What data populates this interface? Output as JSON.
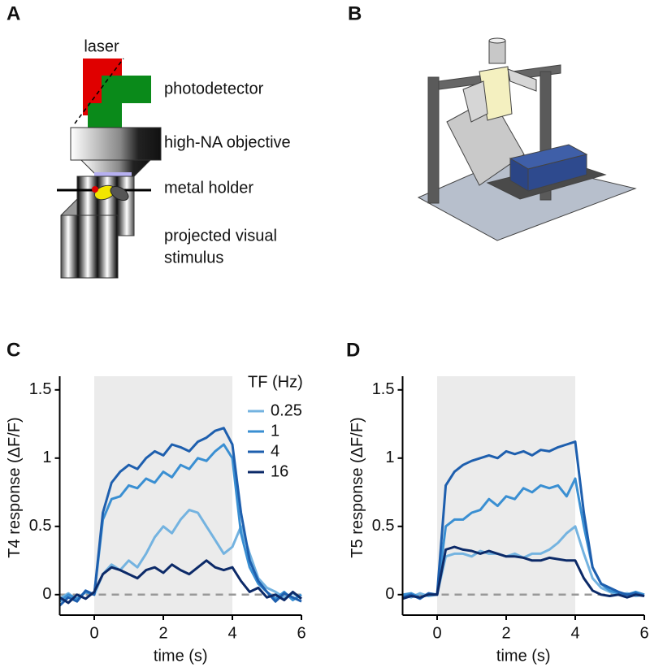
{
  "figure": {
    "panel_labels": [
      "A",
      "B",
      "C",
      "D"
    ],
    "diagram_labels": [
      "laser",
      "photodetector",
      "high-NA objective",
      "metal holder"
    ],
    "stimulus_label_lines": [
      "projected visual",
      "stimulus"
    ]
  },
  "chart_data": [
    {
      "type": "line",
      "xlabel": "time (s)",
      "ylabel": "T4 response (ΔF/F)",
      "xlim": [
        -1,
        6
      ],
      "ylim": [
        -0.15,
        1.6
      ],
      "xticks": [
        0,
        2,
        4,
        6
      ],
      "yticks": [
        0,
        0.5,
        1,
        1.5
      ],
      "stimulus": [
        0,
        4
      ],
      "shade_color": "#ebebeb",
      "reference_line": 0,
      "legend": "upper right",
      "legend_title": "TF (Hz)",
      "x": [
        -1,
        -0.75,
        -0.5,
        -0.25,
        0,
        0.25,
        0.5,
        0.75,
        1,
        1.25,
        1.5,
        1.75,
        2,
        2.25,
        2.5,
        2.75,
        3,
        3.25,
        3.5,
        3.75,
        4,
        4.25,
        4.5,
        4.75,
        5,
        5.25,
        5.5,
        5.75,
        6
      ],
      "series": [
        {
          "name": "0.25",
          "color": "#74b3e0",
          "values": [
            -0.03,
            0.01,
            -0.04,
            0.02,
            0.0,
            0.15,
            0.22,
            0.18,
            0.25,
            0.2,
            0.3,
            0.42,
            0.5,
            0.45,
            0.55,
            0.62,
            0.6,
            0.5,
            0.4,
            0.3,
            0.35,
            0.5,
            0.3,
            0.12,
            0.05,
            0.02,
            -0.02,
            0.01,
            -0.03
          ]
        },
        {
          "name": "1",
          "color": "#3a8fd2",
          "values": [
            -0.05,
            0.0,
            -0.03,
            0.02,
            0.0,
            0.55,
            0.7,
            0.72,
            0.8,
            0.78,
            0.85,
            0.82,
            0.9,
            0.86,
            0.95,
            0.92,
            1.0,
            0.98,
            1.05,
            1.1,
            1.0,
            0.45,
            0.2,
            0.08,
            0.02,
            -0.03,
            0.02,
            -0.04,
            0.0
          ]
        },
        {
          "name": "4",
          "color": "#1e5fae",
          "values": [
            -0.08,
            -0.02,
            -0.05,
            0.03,
            0.0,
            0.6,
            0.82,
            0.9,
            0.95,
            0.92,
            1.0,
            1.05,
            1.02,
            1.1,
            1.08,
            1.05,
            1.12,
            1.15,
            1.2,
            1.22,
            1.1,
            0.6,
            0.25,
            0.1,
            0.02,
            -0.05,
            0.01,
            -0.02,
            -0.05
          ]
        },
        {
          "name": "16",
          "color": "#0c2a68",
          "values": [
            -0.02,
            -0.06,
            0.0,
            -0.03,
            0.02,
            0.15,
            0.2,
            0.18,
            0.15,
            0.12,
            0.18,
            0.2,
            0.16,
            0.22,
            0.18,
            0.15,
            0.2,
            0.25,
            0.2,
            0.18,
            0.2,
            0.1,
            0.02,
            0.05,
            -0.02,
            0.0,
            -0.04,
            0.02,
            -0.03
          ]
        }
      ]
    },
    {
      "type": "line",
      "xlabel": "time (s)",
      "ylabel": "T5 response (ΔF/F)",
      "xlim": [
        -1,
        6
      ],
      "ylim": [
        -0.15,
        1.6
      ],
      "xticks": [
        0,
        2,
        4,
        6
      ],
      "yticks": [
        0,
        0.5,
        1,
        1.5
      ],
      "stimulus": [
        0,
        4
      ],
      "shade_color": "#ebebeb",
      "reference_line": 0,
      "x": [
        -1,
        -0.75,
        -0.5,
        -0.25,
        0,
        0.25,
        0.5,
        0.75,
        1,
        1.25,
        1.5,
        1.75,
        2,
        2.25,
        2.5,
        2.75,
        3,
        3.25,
        3.5,
        3.75,
        4,
        4.25,
        4.5,
        4.75,
        5,
        5.25,
        5.5,
        5.75,
        6
      ],
      "series": [
        {
          "color": "#74b3e0",
          "values": [
            0.0,
            -0.02,
            0.01,
            -0.01,
            0.0,
            0.28,
            0.3,
            0.3,
            0.28,
            0.32,
            0.3,
            0.3,
            0.28,
            0.3,
            0.27,
            0.3,
            0.3,
            0.33,
            0.38,
            0.45,
            0.5,
            0.3,
            0.12,
            0.05,
            0.02,
            0.0,
            0.01,
            -0.01,
            0.0
          ]
        },
        {
          "color": "#3a8fd2",
          "values": [
            0.0,
            0.01,
            -0.02,
            0.0,
            0.0,
            0.5,
            0.55,
            0.55,
            0.6,
            0.62,
            0.7,
            0.65,
            0.72,
            0.7,
            0.78,
            0.75,
            0.8,
            0.78,
            0.8,
            0.72,
            0.85,
            0.5,
            0.2,
            0.08,
            0.03,
            0.01,
            0.0,
            0.02,
            0.0
          ]
        },
        {
          "color": "#1e5fae",
          "values": [
            -0.02,
            0.0,
            -0.03,
            0.01,
            0.0,
            0.8,
            0.9,
            0.95,
            0.98,
            1.0,
            1.02,
            1.0,
            1.05,
            1.03,
            1.05,
            1.02,
            1.06,
            1.05,
            1.08,
            1.1,
            1.12,
            0.6,
            0.2,
            0.08,
            0.05,
            0.02,
            0.0,
            0.01,
            -0.01
          ]
        },
        {
          "color": "#0c2a68",
          "values": [
            -0.03,
            -0.01,
            -0.02,
            0.0,
            0.0,
            0.33,
            0.35,
            0.33,
            0.32,
            0.3,
            0.32,
            0.3,
            0.28,
            0.28,
            0.27,
            0.25,
            0.25,
            0.27,
            0.26,
            0.25,
            0.25,
            0.12,
            0.03,
            0.0,
            -0.01,
            0.0,
            -0.02,
            0.0,
            -0.01
          ]
        }
      ]
    }
  ]
}
